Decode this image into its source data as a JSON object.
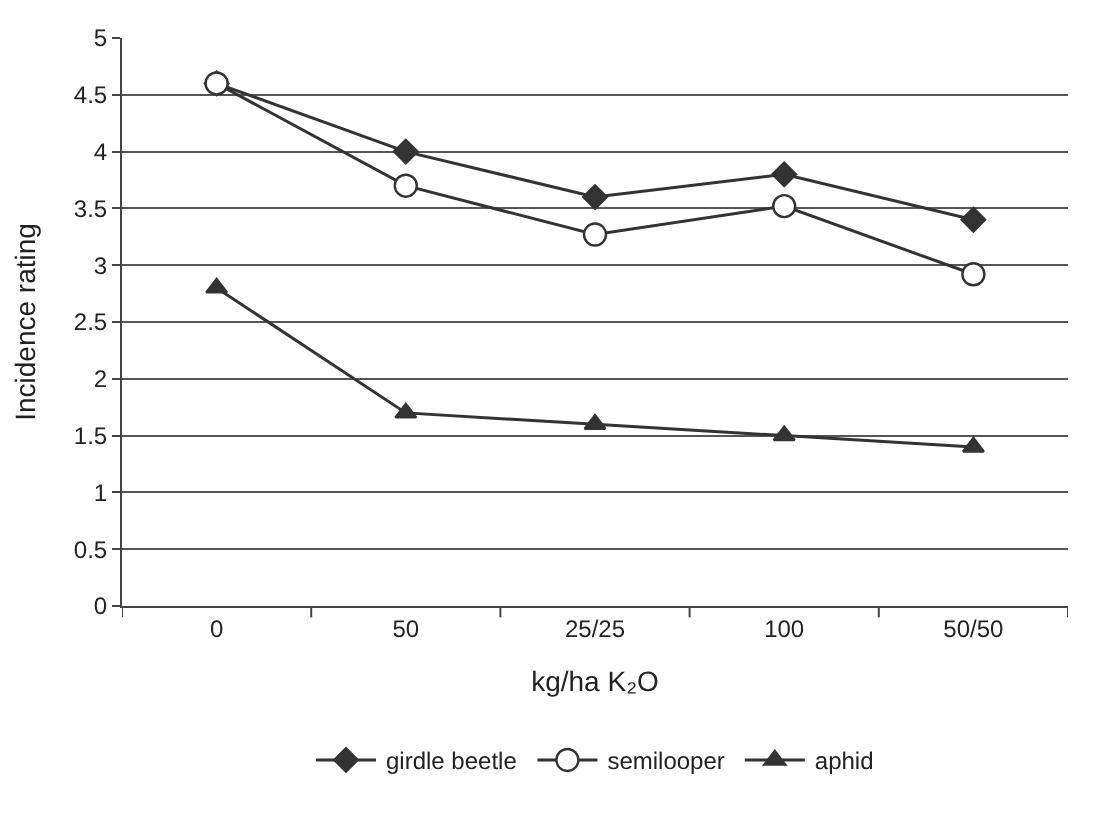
{
  "chart_data": {
    "type": "line",
    "xlabel": "kg/ha K₂O",
    "ylabel": "Incidence rating",
    "categories": [
      "0",
      "50",
      "25/25",
      "100",
      "50/50"
    ],
    "series": [
      {
        "name": "girdle beetle",
        "color": "#333333",
        "marker": "diamond",
        "values": [
          4.6,
          4.0,
          3.6,
          3.8,
          3.4
        ]
      },
      {
        "name": "semilooper",
        "color": "#333333",
        "marker": "circle",
        "values": [
          4.6,
          3.7,
          3.27,
          3.52,
          2.92
        ]
      },
      {
        "name": "aphid",
        "color": "#333333",
        "marker": "triangle",
        "values": [
          2.8,
          1.7,
          1.6,
          1.5,
          1.4
        ]
      }
    ],
    "ylim": [
      0,
      5
    ],
    "yticks": [
      0,
      0.5,
      1,
      1.5,
      2,
      2.5,
      3,
      3.5,
      4,
      4.5,
      5
    ],
    "grid": "y",
    "legend": "bottom",
    "line_style": "solid"
  }
}
